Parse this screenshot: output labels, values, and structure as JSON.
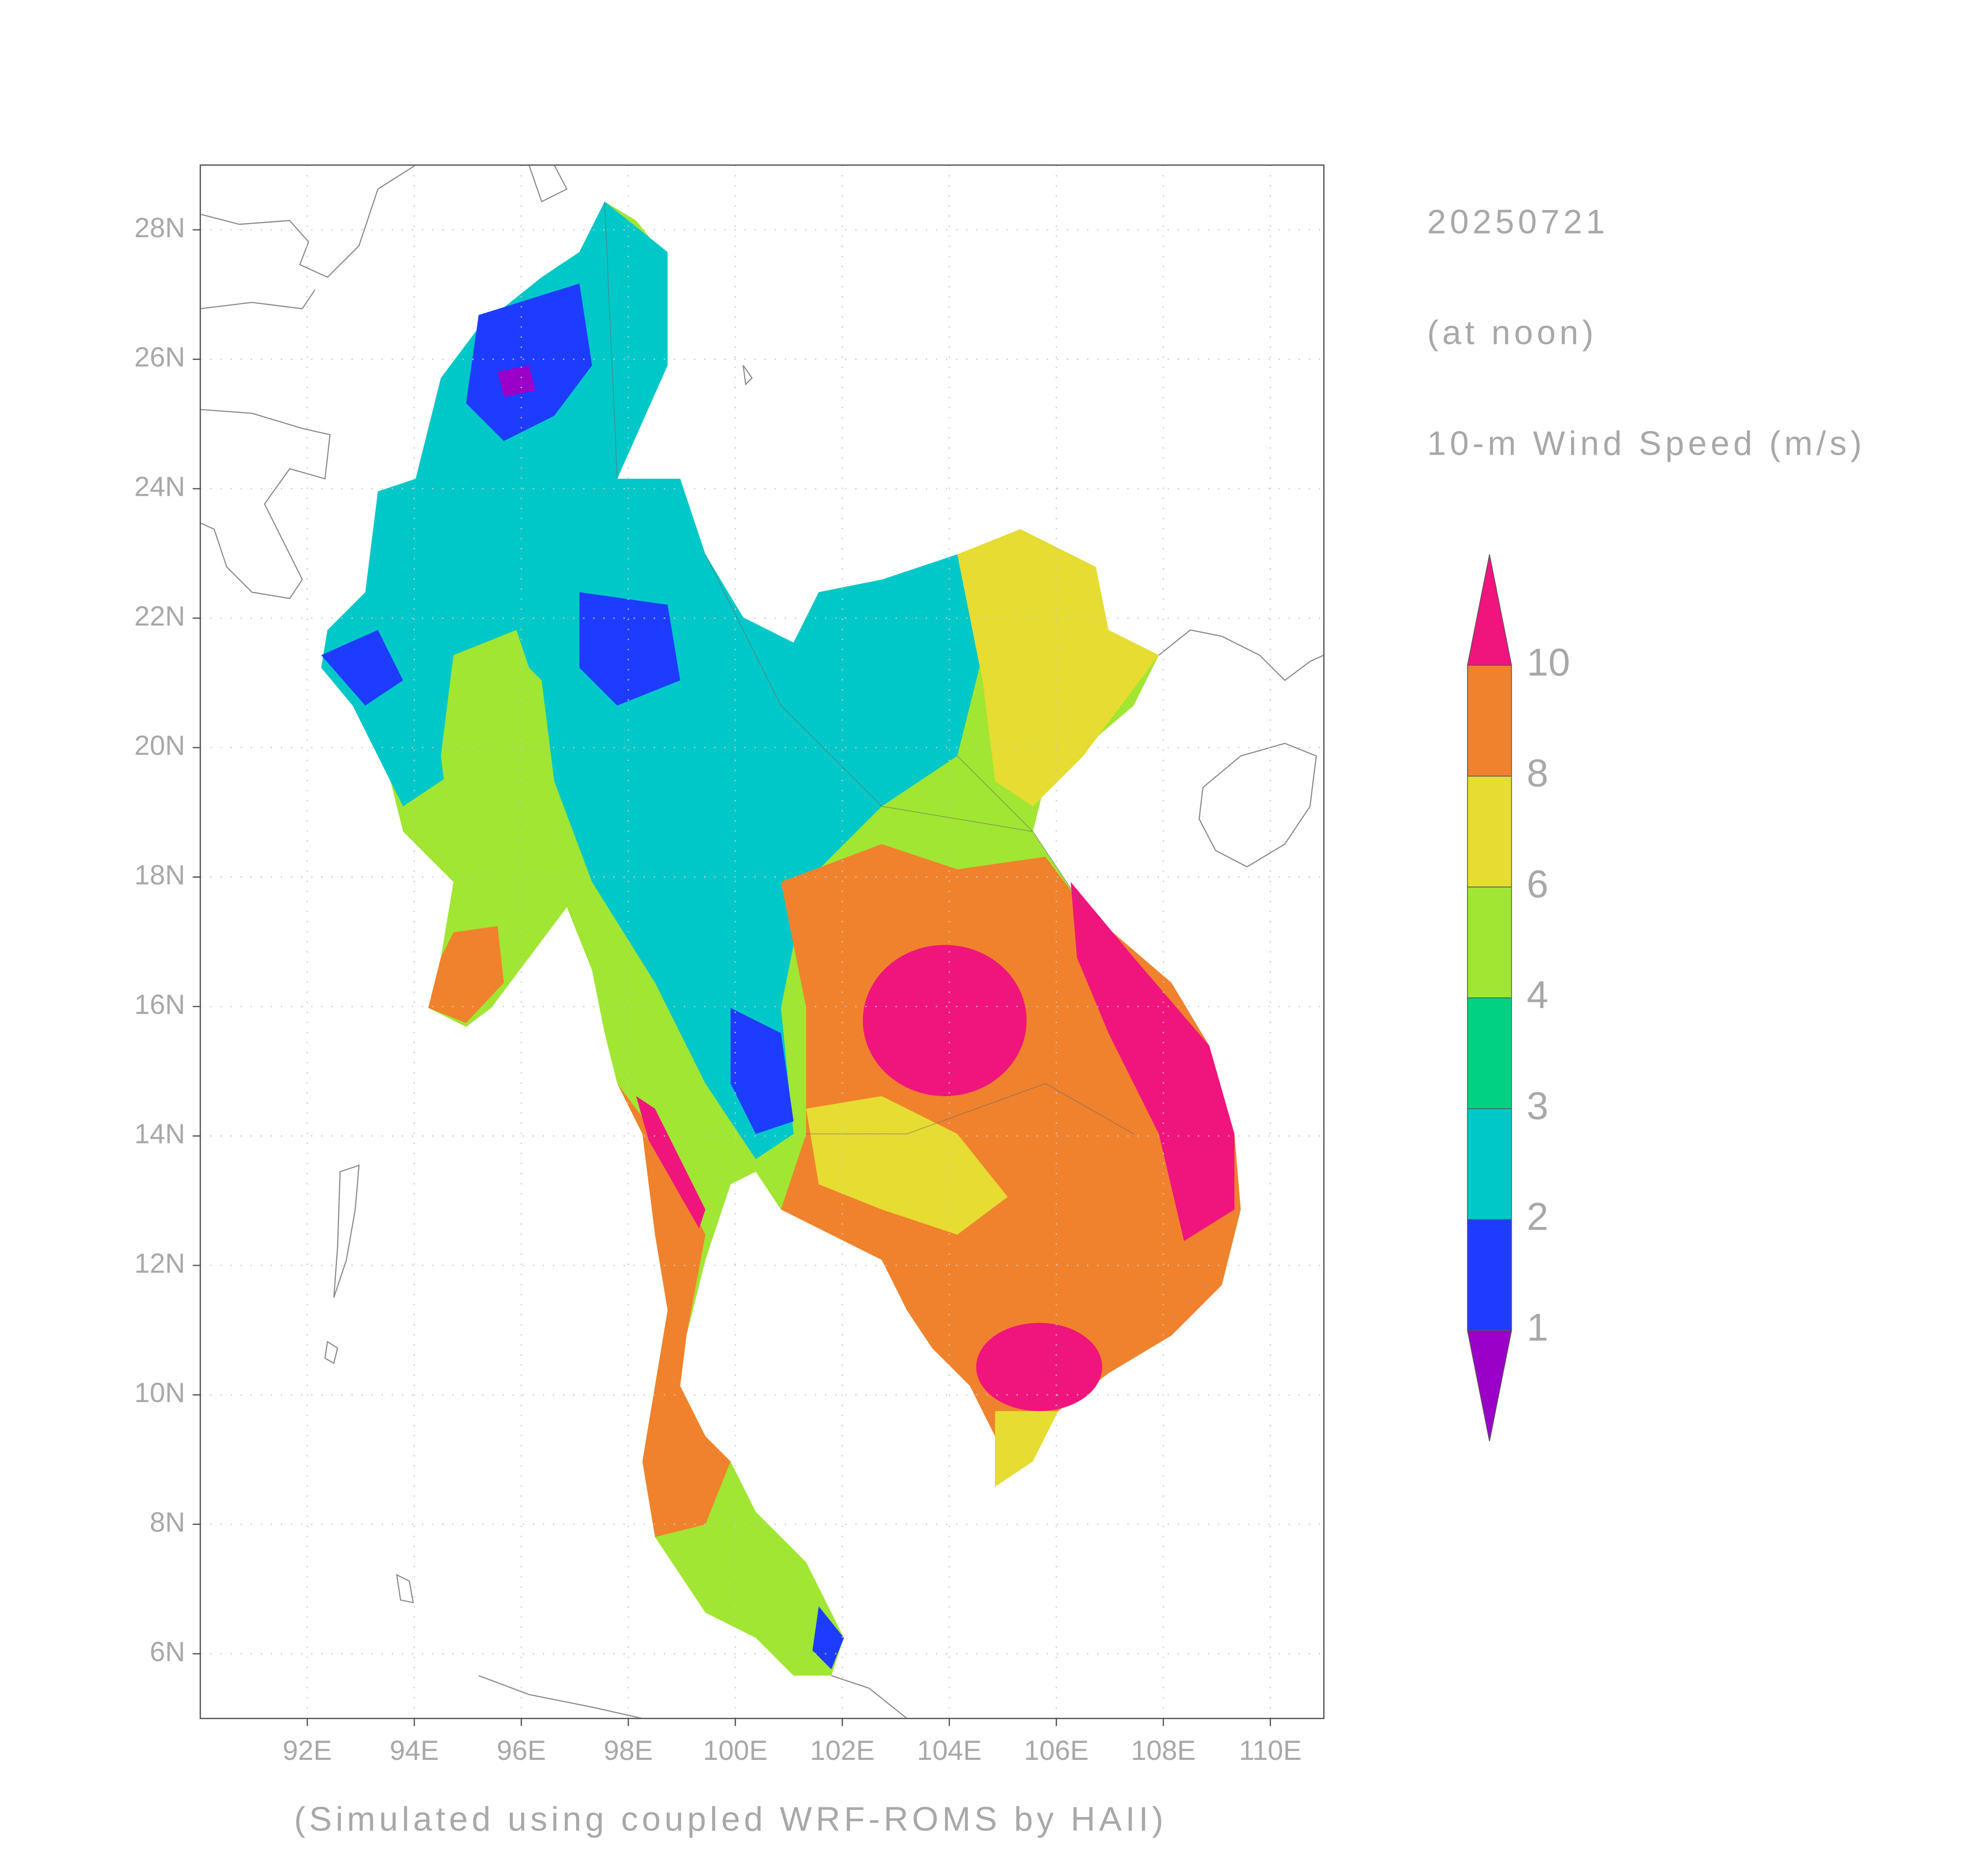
{
  "map": {
    "date": "20250721",
    "time": "(at noon)",
    "title": "10-m Wind Speed (m/s)",
    "credit": "(Simulated using coupled WRF-ROMS by HAII)",
    "xlim": [
      90,
      111
    ],
    "ylim": [
      5,
      29
    ],
    "xticks": [
      {
        "value": 92,
        "label": "92E"
      },
      {
        "value": 94,
        "label": "94E"
      },
      {
        "value": 96,
        "label": "96E"
      },
      {
        "value": 98,
        "label": "98E"
      },
      {
        "value": 100,
        "label": "100E"
      },
      {
        "value": 102,
        "label": "102E"
      },
      {
        "value": 104,
        "label": "104E"
      },
      {
        "value": 106,
        "label": "106E"
      },
      {
        "value": 108,
        "label": "108E"
      },
      {
        "value": 110,
        "label": "110E"
      }
    ],
    "yticks": [
      {
        "value": 6,
        "label": "6N"
      },
      {
        "value": 8,
        "label": "8N"
      },
      {
        "value": 10,
        "label": "10N"
      },
      {
        "value": 12,
        "label": "12N"
      },
      {
        "value": 14,
        "label": "14N"
      },
      {
        "value": 16,
        "label": "16N"
      },
      {
        "value": 18,
        "label": "18N"
      },
      {
        "value": 20,
        "label": "20N"
      },
      {
        "value": 22,
        "label": "22N"
      },
      {
        "value": 24,
        "label": "24N"
      },
      {
        "value": 26,
        "label": "26N"
      },
      {
        "value": 28,
        "label": "28N"
      }
    ],
    "grid": true,
    "colorbar": {
      "levels": [
        1,
        2,
        3,
        4,
        6,
        8,
        10
      ],
      "colors": [
        "#9a00c8",
        "#1e3cff",
        "#00c8c8",
        "#00d282",
        "#a0e632",
        "#e6dc32",
        "#f0822d",
        "#f0147d"
      ]
    }
  }
}
